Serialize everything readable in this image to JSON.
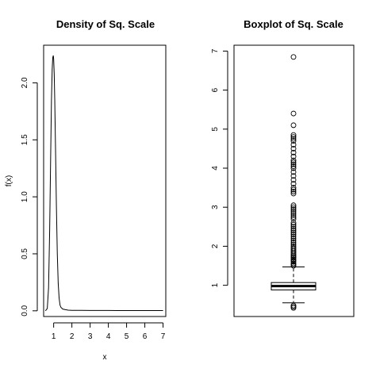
{
  "chart_data": [
    {
      "type": "line",
      "title": "Density of Sq. Scale",
      "xlabel": "x",
      "ylabel": "f(x)",
      "xlim": [
        0.45,
        7.15
      ],
      "ylim": [
        -0.05,
        2.33
      ],
      "xticks": [
        1,
        2,
        3,
        4,
        5,
        6,
        7
      ],
      "yticks": [
        0.0,
        0.5,
        1.0,
        1.5,
        2.0
      ],
      "ytick_labels": [
        "0.0",
        "0.5",
        "1.0",
        "1.5",
        "2.0"
      ],
      "series": [
        {
          "x": [
            0.55,
            0.65,
            0.72,
            0.78,
            0.84,
            0.88,
            0.92,
            0.95,
            0.98,
            1.0,
            1.03,
            1.06,
            1.1,
            1.15,
            1.2,
            1.25,
            1.3,
            1.35,
            1.4,
            1.5,
            1.65,
            1.8,
            2.0,
            2.5,
            3.0,
            3.5,
            4.0,
            4.5,
            5.0,
            5.5,
            6.0,
            6.5,
            7.0
          ],
          "y": [
            0.0,
            0.02,
            0.2,
            0.7,
            1.4,
            1.85,
            2.12,
            2.22,
            2.24,
            2.21,
            2.08,
            1.85,
            1.45,
            0.92,
            0.5,
            0.24,
            0.11,
            0.05,
            0.03,
            0.015,
            0.01,
            0.006,
            0.004,
            0.004,
            0.003,
            0.003,
            0.003,
            0.002,
            0.002,
            0.002,
            0.002,
            0.002,
            0.002
          ]
        }
      ],
      "grid": false
    },
    {
      "type": "boxplot",
      "title": "Boxplot of Sq. Scale",
      "ylim": [
        0.2,
        7.15
      ],
      "yticks": [
        1,
        2,
        3,
        4,
        5,
        6,
        7
      ],
      "box": {
        "q1": 0.88,
        "median": 0.98,
        "q3": 1.07,
        "whisker_low": 0.55,
        "whisker_high": 1.47
      },
      "outliers": [
        0.42,
        0.45,
        0.48,
        1.5,
        1.53,
        1.56,
        1.6,
        1.63,
        1.66,
        1.7,
        1.73,
        1.76,
        1.8,
        1.84,
        1.88,
        1.92,
        1.96,
        2.0,
        2.05,
        2.1,
        2.15,
        2.2,
        2.25,
        2.3,
        2.35,
        2.4,
        2.45,
        2.5,
        2.55,
        2.6,
        2.7,
        2.75,
        2.8,
        2.85,
        2.9,
        2.95,
        3.0,
        3.05,
        3.35,
        3.4,
        3.45,
        3.5,
        3.6,
        3.7,
        3.8,
        3.9,
        4.0,
        4.05,
        4.1,
        4.15,
        4.2,
        4.3,
        4.4,
        4.5,
        4.6,
        4.7,
        4.75,
        4.8,
        4.85,
        5.1,
        5.4,
        6.85
      ]
    }
  ]
}
